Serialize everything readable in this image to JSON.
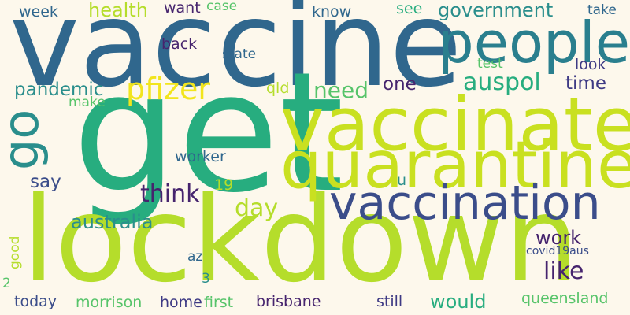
{
  "palette": {
    "background": "#fdf8ec",
    "navy": "#3b4d8a",
    "indigo": "#3e3a84",
    "purple": "#46246e",
    "steel": "#30678d",
    "teal": "#2a8e8c",
    "green": "#27ad7f",
    "mint": "#57c46a",
    "lime": "#b5dd2b",
    "lime_light": "#c9e020",
    "yellow": "#f2e51d"
  },
  "words": [
    {
      "text": "vaccine",
      "color": "#30678d"
    },
    {
      "text": "get",
      "color": "#27ad7f"
    },
    {
      "text": "lockdown",
      "color": "#b5dd2b"
    },
    {
      "text": "vaccinate",
      "color": "#c9e020"
    },
    {
      "text": "quarantine",
      "color": "#c9e020"
    },
    {
      "text": "people",
      "color": "#2a7f8e"
    },
    {
      "text": "vaccination",
      "color": "#3b4d8a"
    },
    {
      "text": "go",
      "color": "#2a8e8c"
    },
    {
      "text": "pfizer",
      "color": "#f2e51d"
    },
    {
      "text": "auspol",
      "color": "#27ad7f"
    },
    {
      "text": "government",
      "color": "#2a8e8c"
    },
    {
      "text": "pandemic",
      "color": "#2a8e8c"
    },
    {
      "text": "need",
      "color": "#57c46a"
    },
    {
      "text": "think",
      "color": "#46246e"
    },
    {
      "text": "day",
      "color": "#b5dd2b"
    },
    {
      "text": "australia",
      "color": "#2a8e8c"
    },
    {
      "text": "work",
      "color": "#46246e"
    },
    {
      "text": "like",
      "color": "#46246e"
    },
    {
      "text": "health",
      "color": "#b5dd2b"
    },
    {
      "text": "week",
      "color": "#30678d"
    },
    {
      "text": "want",
      "color": "#46246e"
    },
    {
      "text": "case",
      "color": "#57c46a"
    },
    {
      "text": "know",
      "color": "#30678d"
    },
    {
      "text": "see",
      "color": "#27ad7f"
    },
    {
      "text": "take",
      "color": "#30678d"
    },
    {
      "text": "back",
      "color": "#46246e"
    },
    {
      "text": "state",
      "color": "#30678d"
    },
    {
      "text": "test",
      "color": "#57c46a"
    },
    {
      "text": "look",
      "color": "#3e3a84"
    },
    {
      "text": "one",
      "color": "#46246e"
    },
    {
      "text": "time",
      "color": "#3e3a84"
    },
    {
      "text": "qld",
      "color": "#b5dd2b"
    },
    {
      "text": "make",
      "color": "#57c46a"
    },
    {
      "text": "worker",
      "color": "#30678d"
    },
    {
      "text": "19",
      "color": "#b5dd2b"
    },
    {
      "text": "u",
      "color": "#2a8e8c"
    },
    {
      "text": "say",
      "color": "#3b4d8a"
    },
    {
      "text": "good",
      "color": "#b5dd2b"
    },
    {
      "text": "az",
      "color": "#30678d"
    },
    {
      "text": "covid19aus",
      "color": "#3b4d8a"
    },
    {
      "text": "3",
      "color": "#2a8e8c"
    },
    {
      "text": "would",
      "color": "#27ad7f"
    },
    {
      "text": "queensland",
      "color": "#57c46a"
    },
    {
      "text": "2",
      "color": "#57c46a"
    },
    {
      "text": "today",
      "color": "#3b4d8a"
    },
    {
      "text": "morrison",
      "color": "#57c46a"
    },
    {
      "text": "home",
      "color": "#3e3a84"
    },
    {
      "text": "first",
      "color": "#57c46a"
    },
    {
      "text": "brisbane",
      "color": "#46246e"
    },
    {
      "text": "still",
      "color": "#3e3a84"
    }
  ]
}
